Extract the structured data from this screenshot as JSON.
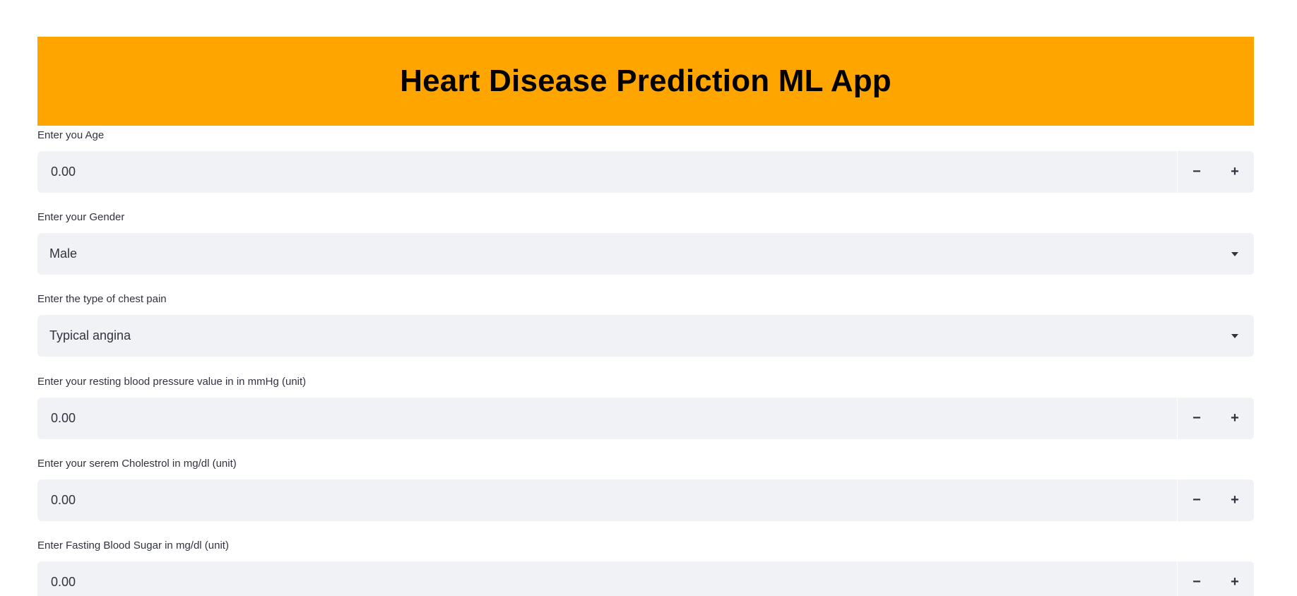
{
  "header": {
    "title": "Heart Disease Prediction ML App",
    "background_color": "#ffa500"
  },
  "fields": [
    {
      "kind": "number",
      "label": "Enter you Age",
      "value": "0.00",
      "decrement_label": "−",
      "increment_label": "+"
    },
    {
      "kind": "select",
      "label": "Enter your Gender",
      "value": "Male",
      "icon": "chevron-down-icon"
    },
    {
      "kind": "select",
      "label": "Enter the type of chest pain",
      "value": "Typical angina",
      "icon": "chevron-down-icon"
    },
    {
      "kind": "number",
      "label": "Enter your resting blood pressure value in in mmHg (unit)",
      "value": "0.00",
      "decrement_label": "−",
      "increment_label": "+"
    },
    {
      "kind": "number",
      "label": "Enter your serem Cholestrol in mg/dl (unit)",
      "value": "0.00",
      "decrement_label": "−",
      "increment_label": "+"
    },
    {
      "kind": "number",
      "label": "Enter Fasting Blood Sugar in mg/dl (unit)",
      "value": "0.00",
      "decrement_label": "−",
      "increment_label": "+"
    }
  ],
  "colors": {
    "field_background": "#f0f2f6",
    "text": "#31333f"
  }
}
